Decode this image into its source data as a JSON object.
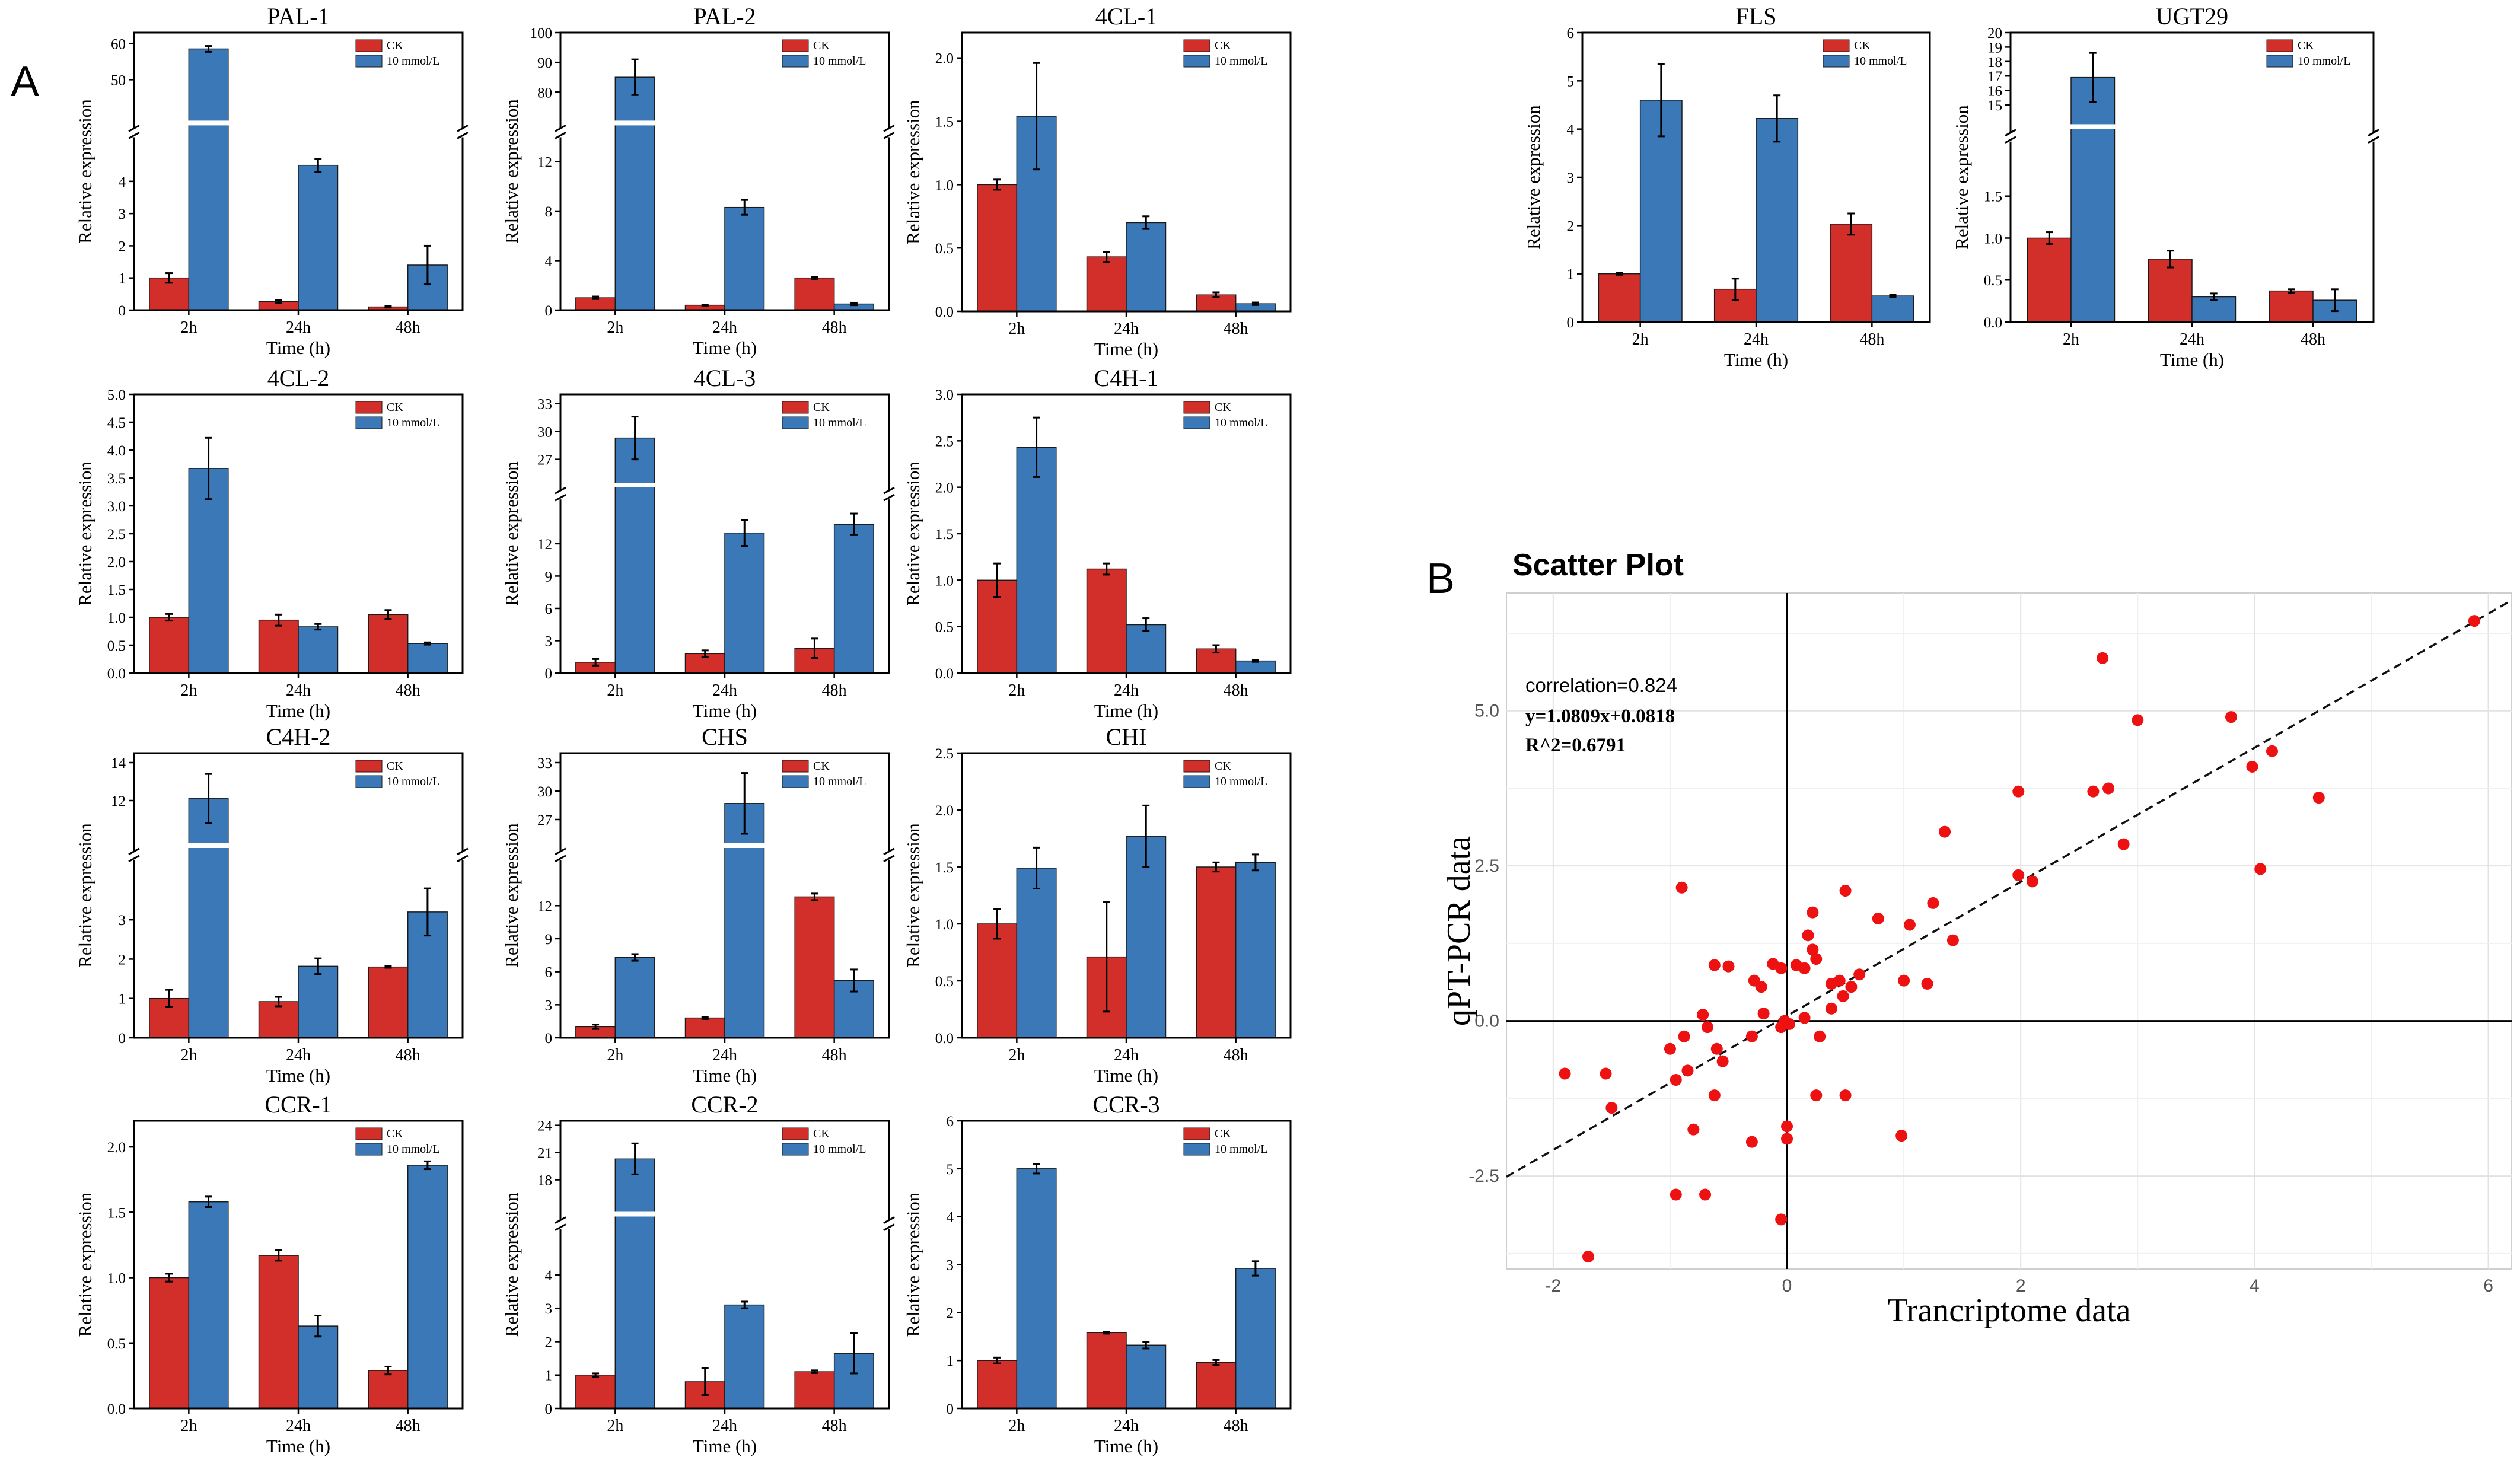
{
  "figure_labels": {
    "panel_a": "A",
    "panel_b": "B"
  },
  "colors": {
    "ck": "#d32f2a",
    "treated": "#3a78b8",
    "scatter_point": "#ee1111",
    "bar_edge": "#1a1a1a"
  },
  "bar_axes": {
    "xlabel": "Time (h)",
    "ylabel": "Relative expression",
    "categories": [
      "2h",
      "24h",
      "48h"
    ]
  },
  "chart_data": [
    {
      "type": "bar",
      "title": "PAL-1",
      "legend": [
        "CK",
        "10 mmol/L"
      ],
      "series": [
        {
          "name": "CK",
          "values": [
            1.0,
            0.27,
            0.1
          ],
          "errors": [
            0.15,
            0.05,
            0.02
          ]
        },
        {
          "name": "10 mmol/L",
          "values": [
            58.5,
            4.5,
            1.4
          ],
          "errors": [
            0.8,
            0.2,
            0.6
          ]
        }
      ],
      "broken_axis": {
        "lower": {
          "range": [
            0,
            5
          ],
          "ticks": [
            "0",
            "1",
            "2",
            "3",
            "4"
          ]
        },
        "upper": {
          "range": [
            40,
            63
          ],
          "ticks": [
            "50",
            "60"
          ]
        }
      }
    },
    {
      "type": "bar",
      "title": "PAL-2",
      "legend": [
        "CK",
        "10 mmol/L"
      ],
      "series": [
        {
          "name": "CK",
          "values": [
            1.0,
            0.4,
            2.6
          ],
          "errors": [
            0.1,
            0.05,
            0.1
          ]
        },
        {
          "name": "10 mmol/L",
          "values": [
            85,
            8.3,
            0.5
          ],
          "errors": [
            6,
            0.6,
            0.1
          ]
        }
      ],
      "broken_axis": {
        "lower": {
          "range": [
            0,
            13
          ],
          "ticks": [
            "0",
            "4",
            "8",
            "12"
          ]
        },
        "upper": {
          "range": [
            72,
            100
          ],
          "ticks": [
            "80",
            "90",
            "100"
          ]
        }
      }
    },
    {
      "type": "bar",
      "title": "4CL-1",
      "legend": [
        "CK",
        "10 mmol/L"
      ],
      "series": [
        {
          "name": "CK",
          "values": [
            1.0,
            0.43,
            0.13
          ],
          "errors": [
            0.04,
            0.04,
            0.02
          ]
        },
        {
          "name": "10 mmol/L",
          "values": [
            1.54,
            0.7,
            0.06
          ],
          "errors": [
            0.42,
            0.05,
            0.01
          ]
        }
      ],
      "ylim": [
        0,
        2.2
      ],
      "yticks": [
        "0.0",
        "0.5",
        "1.0",
        "1.5",
        "2.0"
      ]
    },
    {
      "type": "bar",
      "title": "FLS",
      "legend": [
        "CK",
        "10 mmol/L"
      ],
      "series": [
        {
          "name": "CK",
          "values": [
            1.0,
            0.68,
            2.03
          ],
          "errors": [
            0.02,
            0.22,
            0.22
          ]
        },
        {
          "name": "10 mmol/L",
          "values": [
            4.6,
            4.22,
            0.54
          ],
          "errors": [
            0.75,
            0.48,
            0.02
          ]
        }
      ],
      "ylim": [
        0,
        6
      ],
      "yticks": [
        "0",
        "1",
        "2",
        "3",
        "4",
        "5",
        "6"
      ]
    },
    {
      "type": "bar",
      "title": "UGT29",
      "legend": [
        "CK",
        "10 mmol/L"
      ],
      "series": [
        {
          "name": "CK",
          "values": [
            1.0,
            0.75,
            0.37
          ],
          "errors": [
            0.07,
            0.1,
            0.02
          ]
        },
        {
          "name": "10 mmol/L",
          "values": [
            16.9,
            0.3,
            0.26
          ],
          "errors": [
            1.7,
            0.04,
            0.13
          ]
        }
      ],
      "broken_axis": {
        "lower": {
          "range": [
            0,
            2
          ],
          "ticks": [
            "0.0",
            "0.5",
            "1.0",
            "1.5"
          ]
        },
        "upper": {
          "range": [
            14,
            20
          ],
          "ticks": [
            "15",
            "16",
            "17",
            "18",
            "19",
            "20"
          ]
        }
      }
    },
    {
      "type": "bar",
      "title": "4CL-2",
      "legend": [
        "CK",
        "10 mmol/L"
      ],
      "series": [
        {
          "name": "CK",
          "values": [
            1.0,
            0.95,
            1.05
          ],
          "errors": [
            0.06,
            0.1,
            0.08
          ]
        },
        {
          "name": "10 mmol/L",
          "values": [
            3.67,
            0.83,
            0.53
          ],
          "errors": [
            0.55,
            0.05,
            0.02
          ]
        }
      ],
      "ylim": [
        0,
        5
      ],
      "yticks": [
        "0.0",
        "0.5",
        "1.0",
        "1.5",
        "2.0",
        "2.5",
        "3.0",
        "3.5",
        "4.0",
        "4.5",
        "5.0"
      ]
    },
    {
      "type": "bar",
      "title": "4CL-3",
      "legend": [
        "CK",
        "10 mmol/L"
      ],
      "series": [
        {
          "name": "CK",
          "values": [
            1.0,
            1.8,
            2.3
          ],
          "errors": [
            0.3,
            0.3,
            0.9
          ]
        },
        {
          "name": "10 mmol/L",
          "values": [
            29.3,
            13.0,
            13.8
          ],
          "errors": [
            2.3,
            1.2,
            1.0
          ]
        }
      ],
      "broken_axis": {
        "lower": {
          "range": [
            0,
            15
          ],
          "ticks": [
            "0",
            "3",
            "6",
            "9",
            "12"
          ]
        },
        "upper": {
          "range": [
            25,
            34
          ],
          "ticks": [
            "27",
            "30",
            "33"
          ]
        }
      }
    },
    {
      "type": "bar",
      "title": "C4H-1",
      "legend": [
        "CK",
        "10 mmol/L"
      ],
      "series": [
        {
          "name": "CK",
          "values": [
            1.0,
            1.12,
            0.26
          ],
          "errors": [
            0.18,
            0.06,
            0.04
          ]
        },
        {
          "name": "10 mmol/L",
          "values": [
            2.43,
            0.52,
            0.13
          ],
          "errors": [
            0.32,
            0.07,
            0.01
          ]
        }
      ],
      "ylim": [
        0,
        3
      ],
      "yticks": [
        "0.0",
        "0.5",
        "1.0",
        "1.5",
        "2.0",
        "2.5",
        "3.0"
      ]
    },
    {
      "type": "bar",
      "title": "C4H-2",
      "legend": [
        "CK",
        "10 mmol/L"
      ],
      "series": [
        {
          "name": "CK",
          "values": [
            1.0,
            0.92,
            1.8
          ],
          "errors": [
            0.22,
            0.12,
            0.02
          ]
        },
        {
          "name": "10 mmol/L",
          "values": [
            12.1,
            1.82,
            3.2
          ],
          "errors": [
            1.3,
            0.2,
            0.6
          ]
        }
      ],
      "broken_axis": {
        "lower": {
          "range": [
            0,
            4.2
          ],
          "ticks": [
            "0",
            "1",
            "2",
            "3"
          ]
        },
        "upper": {
          "range": [
            10,
            14.5
          ],
          "ticks": [
            "12",
            "14"
          ]
        }
      }
    },
    {
      "type": "bar",
      "title": "CHS",
      "legend": [
        "CK",
        "10 mmol/L"
      ],
      "series": [
        {
          "name": "CK",
          "values": [
            1.0,
            1.8,
            12.8
          ],
          "errors": [
            0.2,
            0.1,
            0.3
          ]
        },
        {
          "name": "10 mmol/L",
          "values": [
            7.3,
            28.7,
            5.2
          ],
          "errors": [
            0.3,
            3.2,
            1.0
          ]
        }
      ],
      "broken_axis": {
        "lower": {
          "range": [
            0,
            15
          ],
          "ticks": [
            "0",
            "3",
            "6",
            "9",
            "12"
          ]
        },
        "upper": {
          "range": [
            25,
            34
          ],
          "ticks": [
            "27",
            "30",
            "33"
          ]
        }
      }
    },
    {
      "type": "bar",
      "title": "CHI",
      "legend": [
        "CK",
        "10 mmol/L"
      ],
      "series": [
        {
          "name": "CK",
          "values": [
            1.0,
            0.71,
            1.5
          ],
          "errors": [
            0.13,
            0.48,
            0.04
          ]
        },
        {
          "name": "10 mmol/L",
          "values": [
            1.49,
            1.77,
            1.54
          ],
          "errors": [
            0.18,
            0.27,
            0.07
          ]
        }
      ],
      "ylim": [
        0,
        2.5
      ],
      "yticks": [
        "0.0",
        "0.5",
        "1.0",
        "1.5",
        "2.0",
        "2.5"
      ]
    },
    {
      "type": "bar",
      "title": "CCR-1",
      "legend": [
        "CK",
        "10 mmol/L"
      ],
      "series": [
        {
          "name": "CK",
          "values": [
            1.0,
            1.17,
            0.29
          ],
          "errors": [
            0.03,
            0.04,
            0.03
          ]
        },
        {
          "name": "10 mmol/L",
          "values": [
            1.58,
            0.63,
            1.86
          ],
          "errors": [
            0.04,
            0.08,
            0.03
          ]
        }
      ],
      "ylim": [
        0,
        2.2
      ],
      "yticks": [
        "0.0",
        "0.5",
        "1.0",
        "1.5",
        "2.0"
      ]
    },
    {
      "type": "bar",
      "title": "CCR-2",
      "legend": [
        "CK",
        "10 mmol/L"
      ],
      "series": [
        {
          "name": "CK",
          "values": [
            1.0,
            0.8,
            1.1
          ],
          "errors": [
            0.05,
            0.4,
            0.04
          ]
        },
        {
          "name": "10 mmol/L",
          "values": [
            20.3,
            3.1,
            1.65
          ],
          "errors": [
            1.7,
            0.1,
            0.6
          ]
        }
      ],
      "broken_axis": {
        "lower": {
          "range": [
            0,
            5
          ],
          "ticks": [
            "0",
            "1",
            "2",
            "3",
            "4"
          ]
        },
        "upper": {
          "range": [
            15,
            24.5
          ],
          "ticks": [
            "18",
            "21",
            "24"
          ]
        }
      }
    },
    {
      "type": "bar",
      "title": "CCR-3",
      "legend": [
        "CK",
        "10 mmol/L"
      ],
      "series": [
        {
          "name": "CK",
          "values": [
            1.0,
            1.58,
            0.96
          ],
          "errors": [
            0.06,
            0.02,
            0.05
          ]
        },
        {
          "name": "10 mmol/L",
          "values": [
            5.0,
            1.32,
            2.92
          ],
          "errors": [
            0.1,
            0.07,
            0.15
          ]
        }
      ],
      "ylim": [
        0,
        6
      ],
      "yticks": [
        "0",
        "1",
        "2",
        "3",
        "4",
        "5",
        "6"
      ]
    },
    {
      "type": "scatter",
      "title": "Scatter Plot",
      "xlabel": "Trancriptome data",
      "ylabel": "qPT-PCR data",
      "xlim": [
        -2.4,
        6.2
      ],
      "ylim": [
        -4.0,
        6.9
      ],
      "xticks": [
        "-2",
        "0",
        "2",
        "4",
        "6"
      ],
      "yticks": [
        "-2.5",
        "0.0",
        "2.5",
        "5.0"
      ],
      "annotations": [
        "correlation=0.824",
        "y=1.0809x+0.0818",
        "R^2=0.6791"
      ],
      "fit": {
        "slope": 1.0809,
        "intercept": 0.0818
      },
      "points": [
        [
          5.88,
          6.45
        ],
        [
          2.7,
          5.85
        ],
        [
          3.0,
          4.85
        ],
        [
          3.8,
          4.9
        ],
        [
          4.15,
          4.35
        ],
        [
          3.98,
          4.1
        ],
        [
          4.55,
          3.6
        ],
        [
          4.05,
          2.45
        ],
        [
          1.98,
          3.7
        ],
        [
          2.62,
          3.7
        ],
        [
          2.75,
          3.75
        ],
        [
          2.88,
          2.85
        ],
        [
          1.35,
          3.05
        ],
        [
          1.98,
          2.35
        ],
        [
          2.1,
          2.25
        ],
        [
          0.5,
          2.1
        ],
        [
          -0.9,
          2.15
        ],
        [
          0.22,
          1.75
        ],
        [
          0.78,
          1.65
        ],
        [
          1.05,
          1.55
        ],
        [
          1.25,
          1.9
        ],
        [
          1.42,
          1.3
        ],
        [
          0.18,
          1.38
        ],
        [
          0.22,
          1.15
        ],
        [
          0.25,
          1.0
        ],
        [
          0.15,
          0.85
        ],
        [
          0.08,
          0.9
        ],
        [
          -0.12,
          0.92
        ],
        [
          -0.05,
          0.85
        ],
        [
          -0.28,
          0.65
        ],
        [
          -0.22,
          0.55
        ],
        [
          -0.5,
          0.88
        ],
        [
          -0.62,
          0.9
        ],
        [
          0.38,
          0.6
        ],
        [
          0.45,
          0.65
        ],
        [
          0.55,
          0.55
        ],
        [
          0.62,
          0.75
        ],
        [
          1.0,
          0.65
        ],
        [
          1.2,
          0.6
        ],
        [
          0.48,
          0.4
        ],
        [
          0.38,
          0.2
        ],
        [
          0.15,
          0.05
        ],
        [
          0.02,
          -0.05
        ],
        [
          -0.02,
          0.0
        ],
        [
          -0.05,
          -0.1
        ],
        [
          -0.2,
          0.12
        ],
        [
          -0.72,
          0.1
        ],
        [
          -0.68,
          -0.1
        ],
        [
          -0.88,
          -0.25
        ],
        [
          -1.0,
          -0.45
        ],
        [
          -0.6,
          -0.45
        ],
        [
          -0.55,
          -0.65
        ],
        [
          -0.3,
          -0.25
        ],
        [
          0.28,
          -0.25
        ],
        [
          -0.85,
          -0.8
        ],
        [
          -0.62,
          -1.2
        ],
        [
          -0.95,
          -0.95
        ],
        [
          -1.55,
          -0.85
        ],
        [
          -1.9,
          -0.85
        ],
        [
          -1.5,
          -1.4
        ],
        [
          0.25,
          -1.2
        ],
        [
          0.5,
          -1.2
        ],
        [
          -0.8,
          -1.75
        ],
        [
          -0.3,
          -1.95
        ],
        [
          0.0,
          -1.7
        ],
        [
          0.0,
          -1.9
        ],
        [
          0.98,
          -1.85
        ],
        [
          -0.95,
          -2.8
        ],
        [
          -0.7,
          -2.8
        ],
        [
          -0.05,
          -3.2
        ],
        [
          -1.7,
          -3.8
        ]
      ]
    }
  ]
}
